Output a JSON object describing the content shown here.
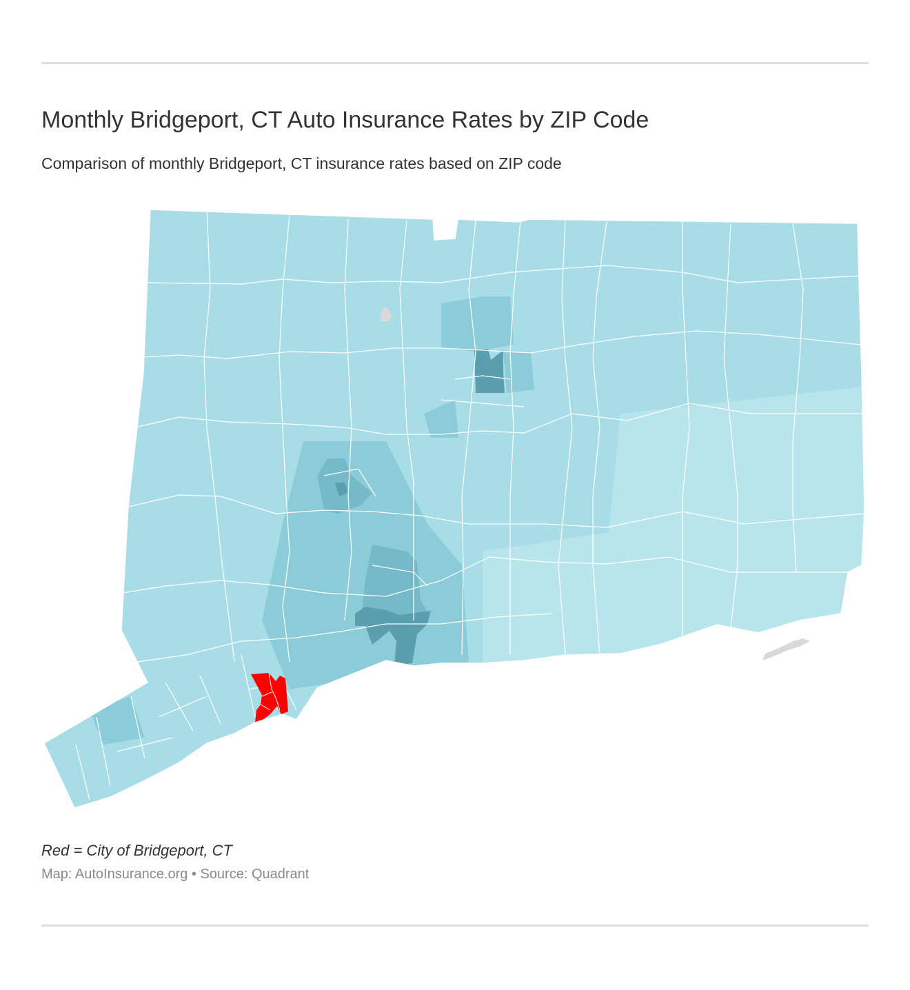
{
  "title": "Monthly Bridgeport, CT Auto Insurance Rates by ZIP Code",
  "subtitle": "Comparison of monthly Bridgeport, CT insurance rates based on ZIP code",
  "legend": "Red = City of Bridgeport, CT",
  "source": "Map: AutoInsurance.org • Source: Quadrant",
  "colors": {
    "base": "#a8dce6",
    "light": "#b8e5ec",
    "medium": "#8ccbd8",
    "mediumDark": "#76b9c8",
    "dark": "#5a9eaf",
    "highlight": "#ff0000",
    "noData": "#d9d9d9",
    "border": "#ffffff"
  }
}
